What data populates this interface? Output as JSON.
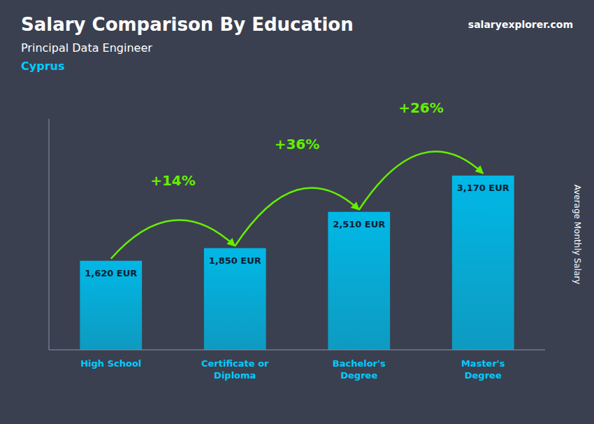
{
  "chart_data": {
    "type": "bar",
    "title": "Salary Comparison By Education",
    "subtitle": "Principal Data Engineer",
    "country": "Cyprus",
    "source": "salaryexplorer.com",
    "categories": [
      "High School",
      "Certificate or\nDiploma",
      "Bachelor's\nDegree",
      "Master's\nDegree"
    ],
    "values": [
      1620,
      1850,
      2510,
      3170
    ],
    "value_labels": [
      "1,620 EUR",
      "1,850 EUR",
      "2,510 EUR",
      "3,170 EUR"
    ],
    "data_labels": true,
    "color": "#00b8e6",
    "annotations": [
      {
        "text": "+14%",
        "color": "#66ee00"
      },
      {
        "text": "+36%",
        "color": "#66ee00"
      },
      {
        "text": "+26%",
        "color": "#66ee00"
      }
    ],
    "ylabel": "Average Monthly Salary",
    "ylim": [
      0,
      4200
    ],
    "tick_labels": false,
    "grid": false
  }
}
